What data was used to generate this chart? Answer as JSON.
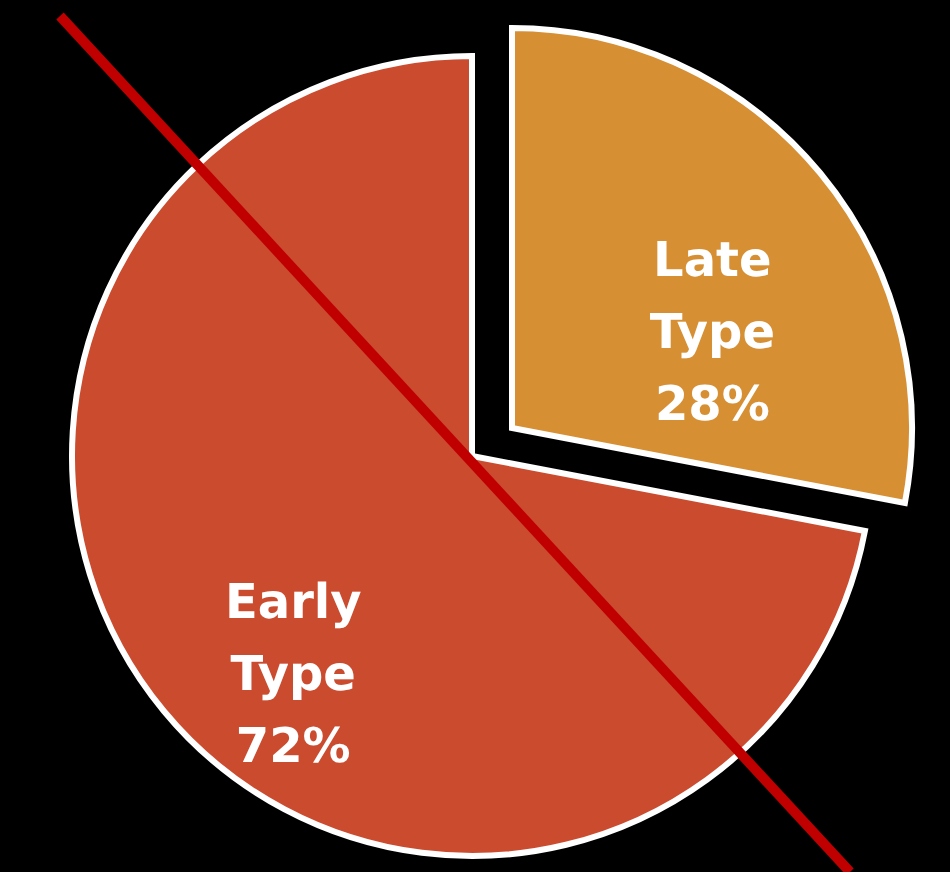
{
  "chart_data": {
    "type": "pie",
    "categories": [
      "Late Type",
      "Early Type"
    ],
    "values": [
      28,
      72
    ],
    "colors": [
      "#d68f33",
      "#cb4b2f"
    ],
    "value_labels": [
      "28%",
      "72%"
    ]
  }
}
